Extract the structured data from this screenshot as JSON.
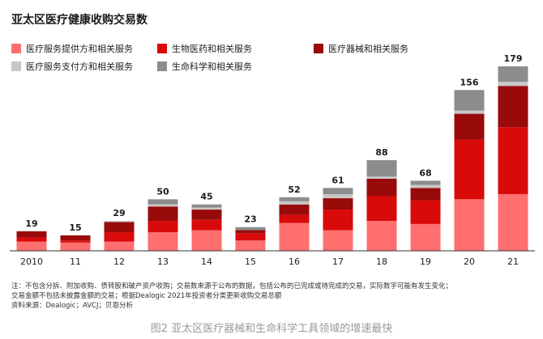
{
  "title": "亚太区医疗健康收购交易数",
  "legend": [
    {
      "label": "医疗服务提供方和相关服务",
      "color": "#ff6f6f"
    },
    {
      "label": "生物医药和相关服务",
      "color": "#d90a0a"
    },
    {
      "label": "医疗器械和相关服务",
      "color": "#990a0a"
    },
    {
      "label": "医疗服务支付方和相关服务",
      "color": "#c8c8c8"
    },
    {
      "label": "生命科学和相关服务",
      "color": "#8c8c8c"
    }
  ],
  "chart_data": {
    "type": "bar",
    "stacked": true,
    "categories": [
      "2010",
      "11",
      "12",
      "13",
      "14",
      "15",
      "16",
      "17",
      "18",
      "19",
      "20",
      "21"
    ],
    "totals": [
      19,
      15,
      29,
      50,
      45,
      23,
      52,
      61,
      88,
      68,
      156,
      179
    ],
    "series": [
      {
        "name": "医疗服务提供方和相关服务",
        "color": "#ff6f6f",
        "values": [
          9,
          8,
          9,
          18,
          20,
          10,
          27,
          20,
          29,
          26,
          50,
          55
        ]
      },
      {
        "name": "生物医药和相关服务",
        "color": "#d90a0a",
        "values": [
          4,
          2,
          9,
          11,
          10,
          7,
          8,
          20,
          24,
          23,
          58,
          65
        ]
      },
      {
        "name": "医疗器械和相关服务",
        "color": "#990a0a",
        "values": [
          6,
          5,
          10,
          14,
          10,
          3,
          10,
          11,
          17,
          12,
          25,
          40
        ]
      },
      {
        "name": "医疗服务支付方和相关服务",
        "color": "#c8c8c8",
        "values": [
          0,
          0,
          1,
          2,
          2,
          0,
          3,
          4,
          2,
          3,
          3,
          4
        ]
      },
      {
        "name": "生命科学和相关服务",
        "color": "#8c8c8c",
        "values": [
          0,
          0,
          0,
          5,
          3,
          3,
          4,
          6,
          16,
          4,
          20,
          15
        ]
      }
    ],
    "ylim": [
      0,
      179
    ],
    "grid": false
  },
  "notes": [
    "注：不包含分拆、附加收购、债转股和破产资产收购；交易数来源于公布的数据，包括公布的已完成或待完成的交易，实际数字可能有发生变化；",
    "交易金额不包括未披露金额的交易；根据Dealogic 2021年投资者分类更新收购交易总额",
    "资料来源：Dealogic；AVCJ；贝恩分析"
  ],
  "caption": "图2 亚太区医疗器械和生命科学工具领域的增速最快"
}
